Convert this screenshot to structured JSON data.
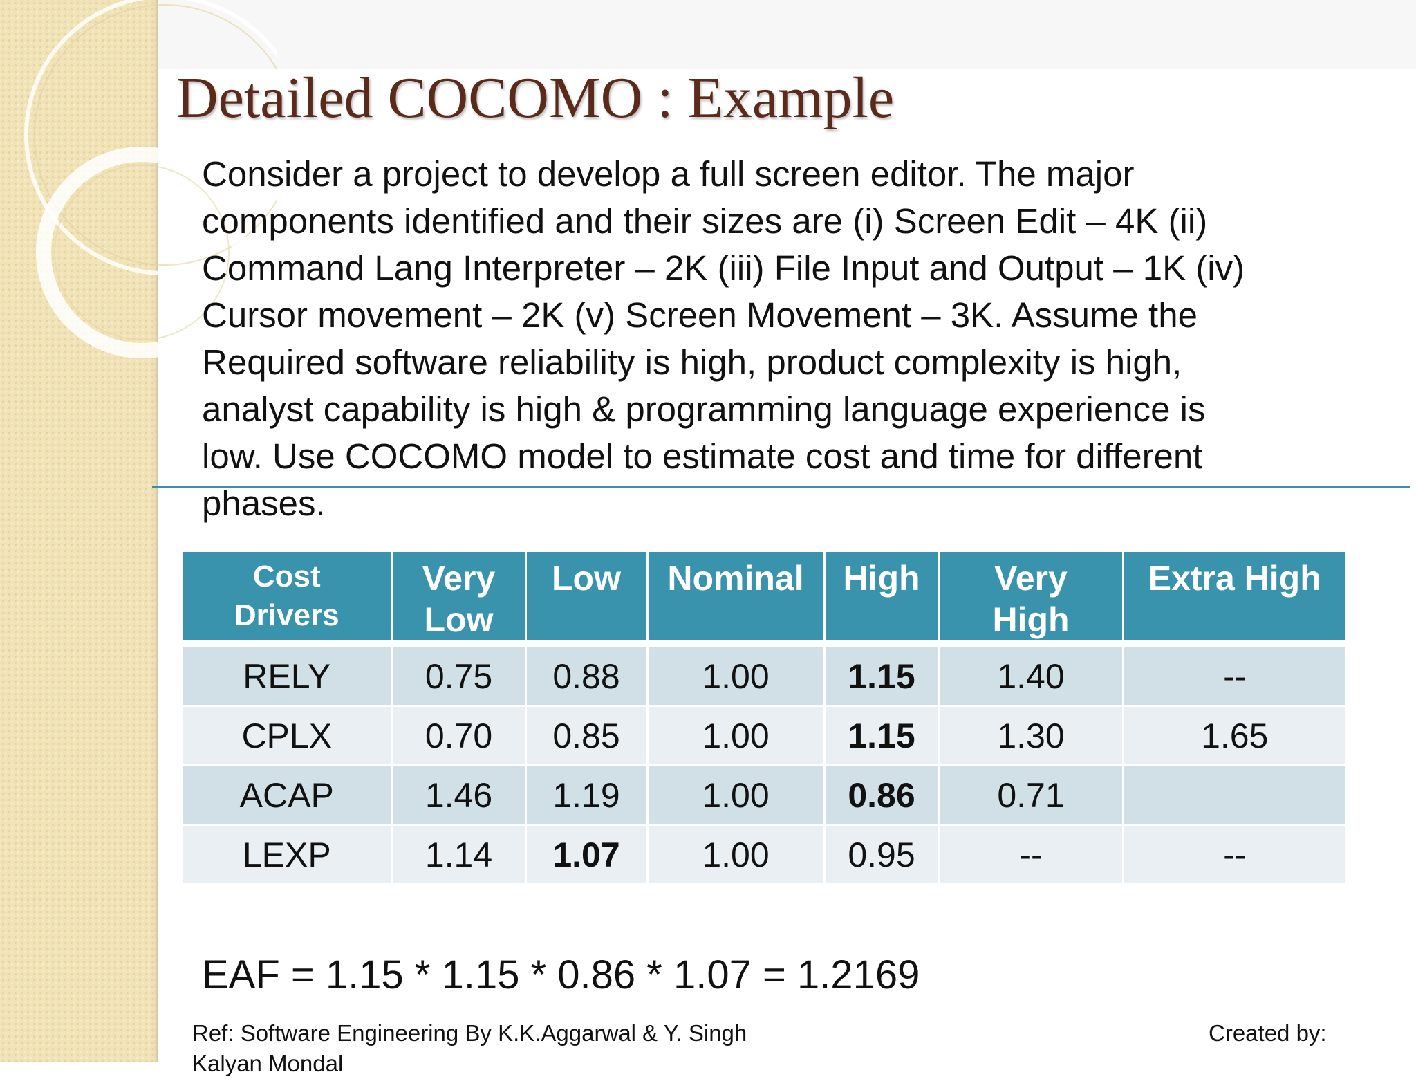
{
  "slide": {
    "title": "Detailed COCOMO : Example",
    "body": "Consider a project to develop a full screen editor. The major\ncomponents identified and their sizes are (i) Screen Edit – 4K (ii)\nCommand Lang Interpreter – 2K (iii) File Input and Output – 1K (iv)\nCursor movement – 2K (v) Screen Movement – 3K. Assume the\nRequired software reliability is high, product complexity is high,\nanalyst capability is high & programming language experience is\nlow. Use COCOMO model to estimate cost and time for different\nphases.",
    "eaf": "EAF = 1.15 * 1.15 * 0.86 * 1.07 = 1.2169",
    "ref": "Ref: Software Engineering By K.K.Aggarwal & Y. Singh\nKalyan Mondal",
    "created_by": "Created by:"
  },
  "table": {
    "headers": [
      "Cost\nDrivers",
      "Very\nLow",
      "Low",
      "Nominal",
      "High",
      "Very\nHigh",
      "Extra High"
    ],
    "rows": [
      [
        "RELY",
        "0.75",
        "0.88",
        "1.00",
        "1.15",
        "1.40",
        "--"
      ],
      [
        "CPLX",
        "0.70",
        "0.85",
        "1.00",
        "1.15",
        "1.30",
        "1.65"
      ],
      [
        "ACAP",
        "1.46",
        "1.19",
        "1.00",
        "0.86",
        "0.71",
        ""
      ],
      [
        "LEXP",
        "1.14",
        "1.07",
        "1.00",
        "0.95",
        "--",
        "--"
      ]
    ]
  },
  "colors": {
    "title": "#5a2a1a",
    "header_bg": "#3a93ad",
    "row_odd": "#d0e0e6",
    "row_even": "#e9eff2",
    "rule": "#3e8fa6",
    "band": "#f1e3b8"
  }
}
